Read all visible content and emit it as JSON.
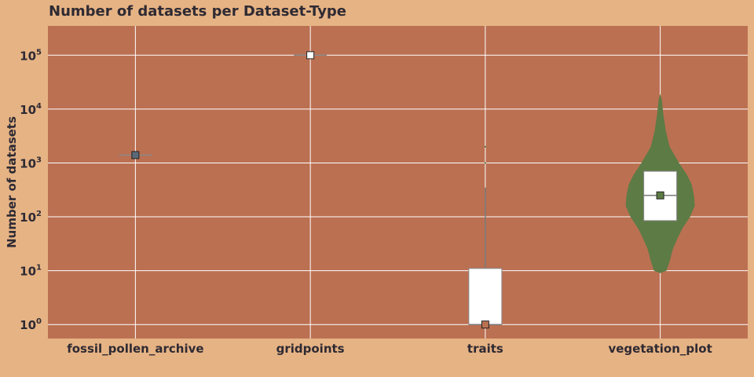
{
  "colors": {
    "page_background": "#e6b384",
    "plot_background": "#bb7052",
    "grid": "#ffffff",
    "violin_fill": "#5d7b45",
    "box_fill": "#ffffff",
    "text": "#2e2a33"
  },
  "chart_data": {
    "type": "violin",
    "title": "Number of datasets per Dataset-Type",
    "xlabel": "",
    "ylabel": "Number of datasets",
    "y_scale": "log",
    "ylim": [
      0.55,
      350000
    ],
    "y_ticks": [
      {
        "value": 1,
        "base": "10",
        "exp": "0"
      },
      {
        "value": 10,
        "base": "10",
        "exp": "1"
      },
      {
        "value": 100,
        "base": "10",
        "exp": "2"
      },
      {
        "value": 1000,
        "base": "10",
        "exp": "3"
      },
      {
        "value": 10000,
        "base": "10",
        "exp": "4"
      },
      {
        "value": 100000,
        "base": "10",
        "exp": "5"
      }
    ],
    "grid": true,
    "categories": [
      "fossil_pollen_archive",
      "gridpoints",
      "traits",
      "vegetation_plot"
    ],
    "series": [
      {
        "category": "fossil_pollen_archive",
        "min": 1400,
        "q1": 1400,
        "median": 1400,
        "q3": 1400,
        "max": 1400,
        "mean": 1400,
        "mean_marker_color": "#5b6a78",
        "violin": []
      },
      {
        "category": "gridpoints",
        "min": 100000,
        "q1": 100000,
        "median": 100000,
        "q3": 100000,
        "max": 100000,
        "mean": 100000,
        "mean_marker_color": "#ffffff",
        "violin": []
      },
      {
        "category": "traits",
        "min": 1,
        "q1": 1,
        "median": 1,
        "q3": 11,
        "max": 350,
        "mean": 1,
        "outliers": [
          2000,
          1000
        ],
        "mean_marker_color": "#bb7052",
        "violin": [
          [
            1,
            3
          ],
          [
            1.05,
            1
          ]
        ]
      },
      {
        "category": "vegetation_plot",
        "min": 85,
        "q1": 85,
        "median": 250,
        "q3": 700,
        "max": 700,
        "mean": 250,
        "mean_marker_color": "#5d7b45",
        "violin": [
          [
            9,
            0
          ],
          [
            10,
            8
          ],
          [
            15,
            12
          ],
          [
            25,
            16
          ],
          [
            40,
            22
          ],
          [
            60,
            28
          ],
          [
            100,
            38
          ],
          [
            160,
            44
          ],
          [
            250,
            43
          ],
          [
            400,
            40
          ],
          [
            600,
            34
          ],
          [
            1000,
            24
          ],
          [
            2000,
            12
          ],
          [
            4000,
            7
          ],
          [
            8000,
            4
          ],
          [
            15000,
            2
          ],
          [
            19000,
            0
          ]
        ]
      }
    ]
  }
}
